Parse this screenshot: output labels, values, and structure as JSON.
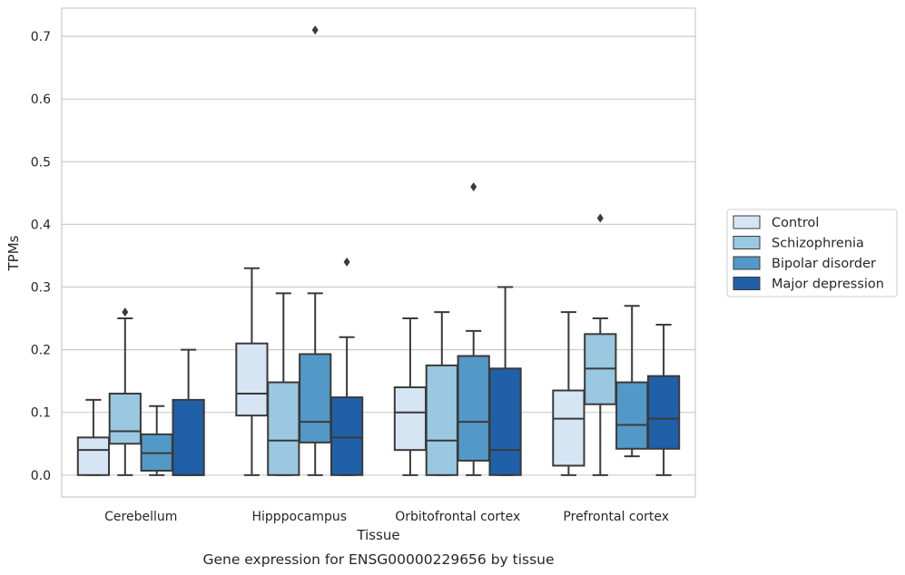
{
  "chart_data": {
    "type": "box",
    "xlabel": "Tissue",
    "ylabel": "TPMs",
    "caption": "Gene expression for ENSG00000229656 by tissue",
    "ylim": [
      -0.035,
      0.745
    ],
    "yticks": [
      "0.0",
      "0.1",
      "0.2",
      "0.3",
      "0.4",
      "0.5",
      "0.6",
      "0.7"
    ],
    "grid": true,
    "legend_position": "right",
    "categories": [
      "Cerebellum",
      "Hipppocampus",
      "Orbitofrontal cortex",
      "Prefrontal cortex"
    ],
    "series": [
      {
        "name": "Control",
        "color": "#d6e5f4",
        "boxes": [
          {
            "min": 0.0,
            "q1": 0.0,
            "median": 0.04,
            "q3": 0.06,
            "max": 0.12,
            "outliers": []
          },
          {
            "min": 0.0,
            "q1": 0.095,
            "median": 0.13,
            "q3": 0.21,
            "max": 0.33,
            "outliers": []
          },
          {
            "min": 0.0,
            "q1": 0.04,
            "median": 0.1,
            "q3": 0.14,
            "max": 0.25,
            "outliers": []
          },
          {
            "min": 0.0,
            "q1": 0.015,
            "median": 0.09,
            "q3": 0.135,
            "max": 0.26,
            "outliers": []
          }
        ]
      },
      {
        "name": "Schizophrenia",
        "color": "#9ac8e0",
        "boxes": [
          {
            "min": 0.0,
            "q1": 0.05,
            "median": 0.07,
            "q3": 0.13,
            "max": 0.25,
            "outliers": [
              0.26
            ]
          },
          {
            "min": 0.0,
            "q1": 0.0,
            "median": 0.055,
            "q3": 0.148,
            "max": 0.29,
            "outliers": []
          },
          {
            "min": 0.0,
            "q1": 0.0,
            "median": 0.055,
            "q3": 0.175,
            "max": 0.26,
            "outliers": []
          },
          {
            "min": 0.0,
            "q1": 0.113,
            "median": 0.17,
            "q3": 0.225,
            "max": 0.25,
            "outliers": [
              0.41
            ]
          }
        ]
      },
      {
        "name": "Bipolar disorder",
        "color": "#5399c7",
        "boxes": [
          {
            "min": 0.0,
            "q1": 0.007,
            "median": 0.035,
            "q3": 0.065,
            "max": 0.11,
            "outliers": []
          },
          {
            "min": 0.0,
            "q1": 0.052,
            "median": 0.085,
            "q3": 0.193,
            "max": 0.29,
            "outliers": [
              0.71
            ]
          },
          {
            "min": 0.0,
            "q1": 0.023,
            "median": 0.085,
            "q3": 0.19,
            "max": 0.23,
            "outliers": [
              0.46
            ]
          },
          {
            "min": 0.03,
            "q1": 0.042,
            "median": 0.08,
            "q3": 0.148,
            "max": 0.27,
            "outliers": []
          }
        ]
      },
      {
        "name": "Major depression",
        "color": "#2060a8",
        "boxes": [
          {
            "min": 0.0,
            "q1": 0.0,
            "median": 0.0,
            "q3": 0.12,
            "max": 0.2,
            "outliers": []
          },
          {
            "min": 0.0,
            "q1": 0.0,
            "median": 0.06,
            "q3": 0.124,
            "max": 0.22,
            "outliers": [
              0.34
            ]
          },
          {
            "min": 0.0,
            "q1": 0.0,
            "median": 0.04,
            "q3": 0.17,
            "max": 0.3,
            "outliers": []
          },
          {
            "min": 0.0,
            "q1": 0.042,
            "median": 0.09,
            "q3": 0.158,
            "max": 0.24,
            "outliers": []
          }
        ]
      }
    ]
  }
}
